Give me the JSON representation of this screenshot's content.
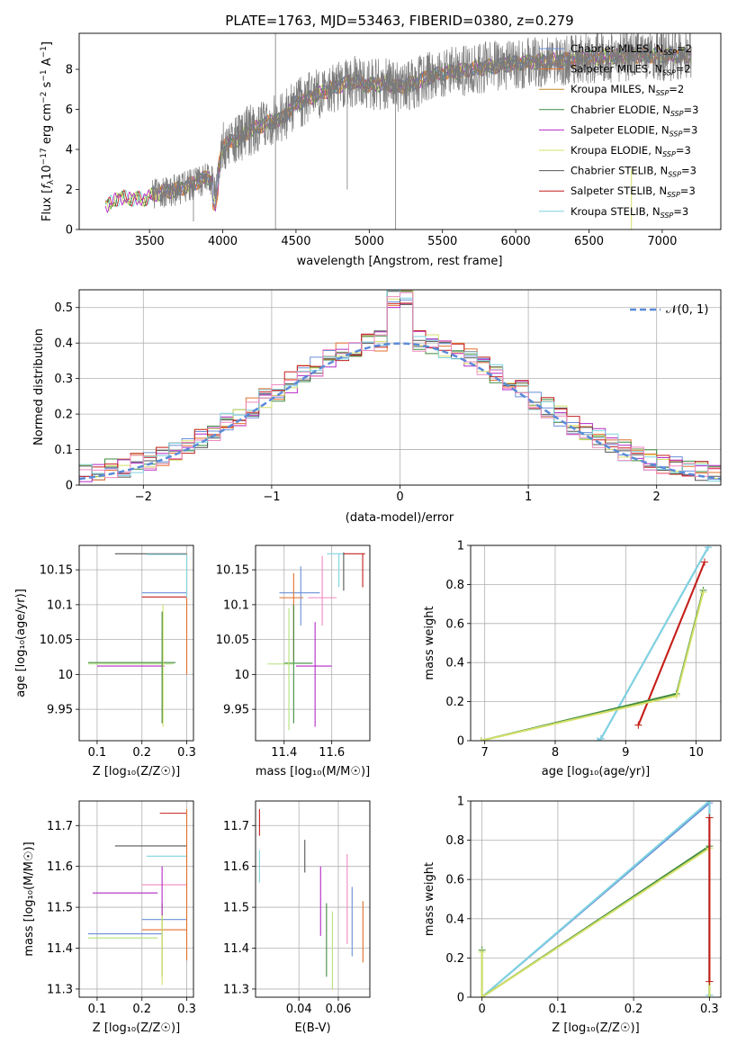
{
  "colors": {
    "Chabrier MILES": "#6a8fd8",
    "Salpeter MILES": "#e3702d",
    "Kroupa MILES": "#c68a2a",
    "Chabrier ELODIE": "#3e8a3e",
    "Salpeter ELODIE": "#b428c6",
    "Kroupa ELODIE": "#d4e068",
    "Chabrier STELIB": "#555555",
    "Salpeter STELIB": "#c41f1f",
    "Kroupa STELIB": "#7fd4e0",
    "Pink": "#f089c0",
    "LightGreen": "#b4e27a",
    "Gaussian": "#5b8bd9"
  },
  "chart_data": [
    {
      "id": "spectrum",
      "type": "line",
      "title": "PLATE=1763, MJD=53463, FIBERID=0380, z=0.279",
      "xlabel": "wavelength [Angstrom, rest frame]",
      "ylabel_parts": [
        "Flux [",
        "f",
        "λ",
        "10",
        "−17",
        " erg cm",
        "−2",
        " s",
        "−1",
        " A",
        "−1",
        "]"
      ],
      "xlim": [
        3020,
        7400
      ],
      "ylim": [
        0,
        9.8
      ],
      "xticks": [
        3500,
        4000,
        4500,
        5000,
        5500,
        6000,
        6500,
        7000
      ],
      "yticks": [
        0,
        2,
        4,
        6,
        8
      ],
      "continuum": {
        "x": [
          3200,
          3300,
          3450,
          3520,
          3600,
          3700,
          3800,
          3900,
          3950,
          4000,
          4100,
          4200,
          4300,
          4400,
          4500,
          4600,
          4700,
          4800,
          4900,
          5000,
          5100,
          5200,
          5300,
          5400,
          5500,
          5600,
          5700,
          5800,
          5900,
          6000,
          6200,
          6400,
          6600,
          6800,
          7000,
          7200
        ],
        "y": [
          1.2,
          1.6,
          1.5,
          1.7,
          1.9,
          2.0,
          2.3,
          2.6,
          2.2,
          4.2,
          4.5,
          5.0,
          5.3,
          5.5,
          6.3,
          6.6,
          6.9,
          7.2,
          7.4,
          7.2,
          7.3,
          7.1,
          7.3,
          7.6,
          7.8,
          7.9,
          8.0,
          8.1,
          8.2,
          8.3,
          8.4,
          8.5,
          8.6,
          8.7,
          8.7,
          8.7
        ]
      },
      "legend": [
        {
          "imf": "Chabrier",
          "lib": "MILES",
          "nssp": "2"
        },
        {
          "imf": "Salpeter",
          "lib": "MILES",
          "nssp": "2"
        },
        {
          "imf": "Kroupa",
          "lib": "MILES",
          "nssp": "2"
        },
        {
          "imf": "Chabrier",
          "lib": "ELODIE",
          "nssp": "3"
        },
        {
          "imf": "Salpeter",
          "lib": "ELODIE",
          "nssp": "3"
        },
        {
          "imf": "Kroupa",
          "lib": "ELODIE",
          "nssp": "3"
        },
        {
          "imf": "Chabrier",
          "lib": "STELIB",
          "nssp": "3"
        },
        {
          "imf": "Salpeter",
          "lib": "STELIB",
          "nssp": "3"
        },
        {
          "imf": "Kroupa",
          "lib": "STELIB",
          "nssp": "3"
        }
      ]
    },
    {
      "id": "residuals",
      "type": "area",
      "xlabel": "(data-model)/error",
      "ylabel": "Normed distribution",
      "xlim": [
        -2.5,
        2.5
      ],
      "ylim": [
        0,
        0.55
      ],
      "xticks": [
        -2,
        -1,
        0,
        1,
        2
      ],
      "yticks": [
        0.0,
        0.1,
        0.2,
        0.3,
        0.4,
        0.5
      ],
      "legend": "𝒩(0, 1)",
      "gaussian": {
        "mu": 0,
        "sigma": 1
      }
    },
    {
      "id": "age_vs_Z",
      "type": "scatter",
      "xlabel": "Z [log₁₀(Z/Z☉)]",
      "ylabel": "age  [log₁₀(age/yr)]",
      "xlim": [
        0.06,
        0.315
      ],
      "ylim": [
        9.905,
        10.185
      ],
      "xticks": [
        0.1,
        0.2,
        0.3
      ],
      "yticks": [
        9.95,
        10.0,
        10.05,
        10.1,
        10.15
      ],
      "points": [
        {
          "c": "Chabrier STELIB",
          "x1": 0.14,
          "x2": 0.3,
          "y": 10.173
        },
        {
          "c": "Kroupa STELIB",
          "x1": 0.21,
          "x2": 0.3,
          "y": 10.172
        },
        {
          "c": "Chabrier MILES",
          "x1": 0.2,
          "x2": 0.3,
          "y": 10.117
        },
        {
          "c": "Salpeter STELIB",
          "x1": 0.2,
          "x2": 0.3,
          "y": 10.111
        },
        {
          "c": "Chabrier ELODIE",
          "x1": 0.08,
          "x2": 0.275,
          "y": 10.017
        },
        {
          "c": "LightGreen",
          "x1": 0.08,
          "x2": 0.27,
          "y": 10.015
        },
        {
          "c": "Salpeter ELODIE",
          "x1": 0.1,
          "x2": 0.25,
          "y": 10.012
        },
        {
          "c": "Kroupa ELODIE",
          "x": 0.247,
          "y1": 9.925,
          "y2": 10.1
        },
        {
          "c": "Chabrier ELODIE",
          "x": 0.245,
          "y1": 9.93,
          "y2": 10.09
        },
        {
          "c": "Salpeter MILES",
          "x": 0.3,
          "y1": 10.0,
          "y2": 10.173
        },
        {
          "c": "Kroupa STELIB",
          "x": 0.3,
          "y1": 10.11,
          "y2": 10.172
        }
      ]
    },
    {
      "id": "age_vs_mass",
      "type": "scatter",
      "xlabel": "mass [log₁₀(M/M☉)]",
      "xlim": [
        11.28,
        11.76
      ],
      "ylim": [
        9.905,
        10.185
      ],
      "xticks": [
        11.4,
        11.6
      ],
      "yticks": [
        9.95,
        10.0,
        10.05,
        10.1,
        10.15
      ],
      "points": [
        {
          "c": "Salpeter STELIB",
          "x1": 11.65,
          "x2": 11.74,
          "y": 10.173,
          "y1": 10.125,
          "y2": 10.173,
          "x": 11.73
        },
        {
          "c": "Kroupa STELIB",
          "x1": 11.58,
          "x2": 11.65,
          "y": 10.173,
          "y1": 10.125,
          "y2": 10.173,
          "x": 11.63
        },
        {
          "c": "Chabrier STELIB",
          "x": 11.65,
          "y1": 10.12,
          "y2": 10.175
        },
        {
          "c": "Chabrier MILES",
          "x1": 11.38,
          "x2": 11.55,
          "y": 10.117,
          "y1": 10.07,
          "y2": 10.155,
          "x": 11.47
        },
        {
          "c": "Pink",
          "x1": 11.5,
          "x2": 11.62,
          "y": 10.11,
          "y1": 10.07,
          "y2": 10.17,
          "x": 11.56
        },
        {
          "c": "Salpeter MILES",
          "x1": 11.38,
          "x2": 11.48,
          "y": 10.11,
          "y1": 10.02,
          "y2": 10.145,
          "x": 11.44
        },
        {
          "c": "Chabrier ELODIE",
          "x1": 11.4,
          "x2": 11.52,
          "y": 10.016,
          "y1": 9.93,
          "y2": 10.1,
          "x": 11.44
        },
        {
          "c": "LightGreen",
          "x1": 11.33,
          "x2": 11.44,
          "y": 10.015,
          "y1": 9.92,
          "y2": 10.095,
          "x": 11.42
        },
        {
          "c": "Salpeter ELODIE",
          "x1": 11.45,
          "x2": 11.6,
          "y": 10.012,
          "y1": 9.925,
          "y2": 10.075,
          "x": 11.53
        }
      ]
    },
    {
      "id": "weight_vs_age",
      "type": "line",
      "xlabel": "age  [log₁₀(age/yr)]",
      "ylabel": "mass weight",
      "xlim": [
        6.8,
        10.35
      ],
      "ylim": [
        0,
        1
      ],
      "xticks": [
        7,
        8,
        9,
        10
      ],
      "yticks": [
        0.0,
        0.2,
        0.4,
        0.6,
        0.8,
        1.0
      ],
      "series": [
        {
          "c": "Chabrier MILES",
          "x": [
            8.6,
            8.65,
            10.17
          ],
          "y": [
            0.0,
            0.01,
            0.99
          ]
        },
        {
          "c": "Kroupa STELIB",
          "x": [
            8.6,
            8.65,
            10.17
          ],
          "y": [
            0.0,
            0.01,
            0.99
          ]
        },
        {
          "c": "Salpeter MILES",
          "x": [
            9.18,
            10.12
          ],
          "y": [
            0.08,
            0.915
          ]
        },
        {
          "c": "Salpeter STELIB",
          "x": [
            9.18,
            10.12
          ],
          "y": [
            0.08,
            0.915
          ]
        },
        {
          "c": "Chabrier ELODIE",
          "x": [
            6.95,
            9.72,
            10.1
          ],
          "y": [
            0.0,
            0.24,
            0.77
          ]
        },
        {
          "c": "Kroupa ELODIE",
          "x": [
            6.95,
            9.72,
            10.1
          ],
          "y": [
            0.0,
            0.23,
            0.76
          ]
        }
      ]
    },
    {
      "id": "mass_vs_Z",
      "type": "scatter",
      "xlabel": "Z [log₁₀(Z/Z☉)]",
      "ylabel": "mass [log₁₀(M/M☉)]",
      "xlim": [
        0.06,
        0.315
      ],
      "ylim": [
        11.28,
        11.76
      ],
      "xticks": [
        0.1,
        0.2,
        0.3
      ],
      "yticks": [
        11.3,
        11.4,
        11.5,
        11.6,
        11.7
      ],
      "points": [
        {
          "c": "Salpeter STELIB",
          "x1": 0.24,
          "x2": 0.3,
          "y": 11.73
        },
        {
          "c": "Chabrier STELIB",
          "x1": 0.14,
          "x2": 0.3,
          "y": 11.65
        },
        {
          "c": "Kroupa STELIB",
          "x1": 0.21,
          "x2": 0.3,
          "y": 11.625
        },
        {
          "c": "Pink",
          "x1": 0.2,
          "x2": 0.3,
          "y": 11.555
        },
        {
          "c": "Salpeter ELODIE",
          "x1": 0.09,
          "x2": 0.235,
          "y": 11.535
        },
        {
          "c": "Chabrier MILES",
          "x1": 0.2,
          "x2": 0.3,
          "y": 11.47
        },
        {
          "c": "Salpeter MILES",
          "x1": 0.2,
          "x2": 0.3,
          "y": 11.445
        },
        {
          "c": "Chabrier MILES",
          "x1": 0.08,
          "x2": 0.245,
          "y": 11.435
        },
        {
          "c": "LightGreen",
          "x1": 0.08,
          "x2": 0.235,
          "y": 11.425
        },
        {
          "c": "Chabrier ELODIE",
          "x": 0.245,
          "y1": 11.33,
          "y2": 11.51
        },
        {
          "c": "Kroupa ELODIE",
          "x": 0.245,
          "y1": 11.31,
          "y2": 11.5
        },
        {
          "c": "Salpeter ELODIE",
          "x": 0.245,
          "y1": 11.48,
          "y2": 11.6
        },
        {
          "c": "Salpeter MILES",
          "x": 0.3,
          "y1": 11.37,
          "y2": 11.74
        }
      ]
    },
    {
      "id": "mass_vs_ebv",
      "type": "scatter",
      "xlabel": "E(B-V)",
      "xlim": [
        0.018,
        0.076
      ],
      "ylim": [
        11.28,
        11.76
      ],
      "xticks": [
        0.04,
        0.06
      ],
      "yticks": [
        11.3,
        11.4,
        11.5,
        11.6,
        11.7
      ],
      "points": [
        {
          "c": "Salpeter STELIB",
          "x": 0.02,
          "y1": 11.675,
          "y2": 11.74
        },
        {
          "c": "Kroupa STELIB",
          "x": 0.02,
          "y1": 11.56,
          "y2": 11.64
        },
        {
          "c": "Chabrier STELIB",
          "x": 0.043,
          "y1": 11.585,
          "y2": 11.665
        },
        {
          "c": "Salpeter ELODIE",
          "x": 0.051,
          "y1": 11.43,
          "y2": 11.6
        },
        {
          "c": "Chabrier ELODIE",
          "x": 0.054,
          "y1": 11.33,
          "y2": 11.51
        },
        {
          "c": "LightGreen",
          "x": 0.057,
          "y1": 11.3,
          "y2": 11.49
        },
        {
          "c": "Pink",
          "x": 0.0645,
          "y1": 11.41,
          "y2": 11.63
        },
        {
          "c": "Chabrier MILES",
          "x": 0.067,
          "y1": 11.38,
          "y2": 11.55
        },
        {
          "c": "Salpeter MILES",
          "x": 0.0725,
          "y1": 11.365,
          "y2": 11.515
        }
      ]
    },
    {
      "id": "weight_vs_Z",
      "type": "line",
      "xlabel": "Z [log₁₀(Z/Z☉)]",
      "ylabel": "mass weight",
      "xlim": [
        -0.015,
        0.315
      ],
      "ylim": [
        0,
        1
      ],
      "xticks": [
        0.0,
        0.1,
        0.2,
        0.3
      ],
      "yticks": [
        0.0,
        0.2,
        0.4,
        0.6,
        0.8,
        1.0
      ],
      "series": [
        {
          "c": "Chabrier MILES",
          "x": [
            0.0,
            0.3,
            0.3,
            0.3
          ],
          "y": [
            0.0,
            0.99,
            0.01,
            0.0
          ]
        },
        {
          "c": "Kroupa STELIB",
          "x": [
            0.0,
            0.3,
            0.3,
            0.3
          ],
          "y": [
            0.0,
            1.0,
            0.01,
            0.0
          ]
        },
        {
          "c": "Chabrier ELODIE",
          "x": [
            0.0,
            0.0,
            0.3,
            0.3
          ],
          "y": [
            0.24,
            0.0,
            0.77,
            0.0
          ]
        },
        {
          "c": "Kroupa ELODIE",
          "x": [
            0.0,
            0.0,
            0.3,
            0.3
          ],
          "y": [
            0.23,
            0.0,
            0.76,
            0.0
          ]
        },
        {
          "c": "Salpeter MILES",
          "x": [
            0.3,
            0.3
          ],
          "y": [
            0.08,
            0.915
          ]
        },
        {
          "c": "Salpeter STELIB",
          "x": [
            0.3,
            0.3
          ],
          "y": [
            0.08,
            0.915
          ]
        }
      ]
    }
  ]
}
